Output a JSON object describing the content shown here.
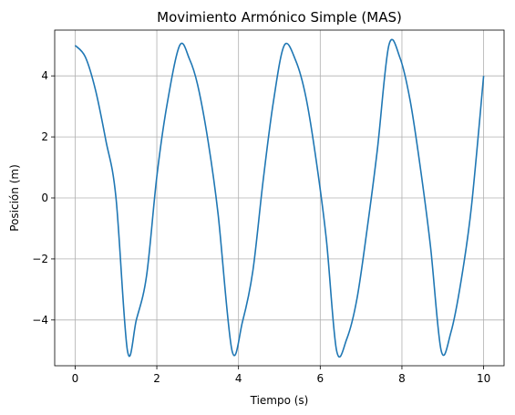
{
  "chart_data": {
    "type": "line",
    "title": "Movimiento Armónico Simple (MAS)",
    "xlabel": "Tiempo (s)",
    "ylabel": "Posición (m)",
    "xlim": [
      -0.5,
      10.5
    ],
    "ylim": [
      -5.5,
      5.5
    ],
    "x_ticks": [
      0,
      2,
      4,
      6,
      8,
      10
    ],
    "x_tick_labels": [
      "0",
      "2",
      "4",
      "6",
      "8",
      "10"
    ],
    "y_ticks": [
      -4,
      -2,
      0,
      2,
      4
    ],
    "y_tick_labels": [
      "−4",
      "−2",
      "0",
      "2",
      "4"
    ],
    "grid": true,
    "series": [
      {
        "color": "#1f77b4",
        "x": [
          0,
          0.25,
          0.5,
          0.75,
          1.0,
          1.28,
          1.5,
          1.75,
          2.0,
          2.25,
          2.56,
          2.8,
          3.0,
          3.25,
          3.5,
          3.84,
          4.1,
          4.35,
          4.6,
          4.85,
          5.12,
          5.4,
          5.65,
          5.9,
          6.15,
          6.4,
          6.65,
          6.9,
          7.15,
          7.4,
          7.68,
          7.95,
          8.2,
          8.45,
          8.7,
          8.96,
          9.2,
          9.45,
          9.7,
          10.0
        ],
        "y": [
          5.0,
          4.62,
          3.53,
          1.9,
          0.01,
          -5.0,
          -3.99,
          -2.54,
          0.7,
          3.06,
          5.0,
          4.55,
          3.7,
          1.9,
          -0.53,
          -5.0,
          -4.04,
          -2.4,
          0.54,
          3.12,
          5.0,
          4.5,
          3.3,
          1.24,
          -1.36,
          -5.0,
          -4.62,
          -3.3,
          -1.0,
          1.6,
          5.0,
          4.6,
          3.2,
          1.0,
          -1.6,
          -5.0,
          -4.4,
          -2.7,
          -0.3,
          4.0
        ]
      }
    ]
  }
}
